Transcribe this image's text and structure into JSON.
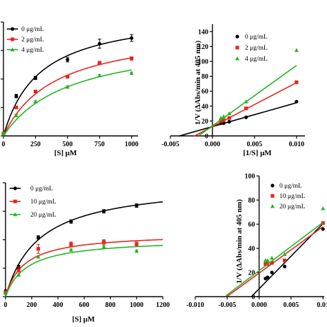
{
  "chart_data": [
    {
      "id": "A",
      "type": "line",
      "title": "",
      "xlabel": "[S] μM",
      "ylabel": "",
      "xlim": [
        0,
        1050
      ],
      "ylim": [
        0,
        10
      ],
      "xticks": [
        0,
        250,
        500,
        750,
        1000
      ],
      "xtick_labels": [
        "0",
        "250",
        "500",
        "750",
        "1000"
      ],
      "legend": {
        "position": "top-left",
        "entries": [
          "0 μg/mL",
          "2 μg/mL",
          "4 μg/mL"
        ]
      },
      "series": [
        {
          "name": "0 μg/mL",
          "color": "#000000",
          "marker": "circle",
          "x": [
            0,
            100,
            250,
            500,
            750,
            1000
          ],
          "y": [
            0.2,
            3.5,
            5.1,
            6.7,
            8.1,
            8.6
          ],
          "error": [
            0,
            0.15,
            0.15,
            0.2,
            0.4,
            0.3
          ],
          "fit": {
            "vmax": 11.0,
            "km": 280
          }
        },
        {
          "name": "2 μg/mL",
          "color": "#e8221c",
          "marker": "square",
          "x": [
            0,
            100,
            250,
            500,
            750,
            1000
          ],
          "y": [
            0.2,
            2.5,
            3.9,
            5.2,
            6.4,
            6.8
          ],
          "error": [
            0,
            0.1,
            0.1,
            0.1,
            0.15,
            0.15
          ],
          "fit": {
            "vmax": 9.6,
            "km": 400
          }
        },
        {
          "name": "4 μg/mL",
          "color": "#22b522",
          "marker": "triangle",
          "x": [
            0,
            100,
            250,
            500,
            750,
            1000
          ],
          "y": [
            0.2,
            1.8,
            3.0,
            4.3,
            5.3,
            5.5
          ],
          "error": [
            0,
            0.1,
            0.1,
            0.1,
            0.1,
            0.1
          ],
          "fit": {
            "vmax": 8.8,
            "km": 520
          }
        }
      ]
    },
    {
      "id": "B",
      "type": "scatter",
      "title": "",
      "xlabel": "[1/S] μM",
      "ylabel": "1/V (ΔAbs/min at 405 nm)",
      "xlim": [
        -0.005,
        0.011
      ],
      "ylim": [
        0,
        150
      ],
      "xticks": [
        -0.005,
        0,
        0.005,
        0.01
      ],
      "xtick_labels": [
        "-0.005",
        "0.000",
        "0.005",
        "0.010"
      ],
      "yticks": [
        0,
        20,
        40,
        60,
        80,
        100,
        120,
        140
      ],
      "ytick_labels": [
        "0",
        "20",
        "40",
        "60",
        "80",
        "100",
        "120",
        "140"
      ],
      "legend": {
        "position": "top-right",
        "entries": [
          "0 μg/mL",
          "2 μg/mL",
          "4 μg/mL"
        ]
      },
      "series": [
        {
          "name": "0 μg/mL",
          "color": "#000000",
          "marker": "circle",
          "x": [
            0.001,
            0.00133,
            0.002,
            0.004,
            0.01
          ],
          "y": [
            17,
            17,
            19,
            25,
            46
          ],
          "fit": {
            "slope": 3200,
            "intercept": 12.5,
            "x_from": -0.004,
            "x_to": 0.01
          }
        },
        {
          "name": "2 μg/mL",
          "color": "#e8221c",
          "marker": "square",
          "x": [
            0.001,
            0.00133,
            0.002,
            0.004,
            0.01
          ],
          "y": [
            20,
            21,
            24,
            37,
            72
          ],
          "fit": {
            "slope": 5900,
            "intercept": 12.5,
            "x_from": -0.0022,
            "x_to": 0.01
          }
        },
        {
          "name": "4 μg/mL",
          "color": "#22b522",
          "marker": "triangle",
          "x": [
            0.001,
            0.00133,
            0.002,
            0.004,
            0.01
          ],
          "y": [
            24,
            26,
            30,
            46,
            115
          ],
          "fit": {
            "slope": 8100,
            "intercept": 13.5,
            "x_from": -0.0016,
            "x_to": 0.01
          }
        }
      ]
    },
    {
      "id": "C",
      "type": "line",
      "title": "",
      "xlabel": "[S] μM",
      "ylabel": "",
      "xlim": [
        0,
        1200
      ],
      "ylim": [
        0,
        10
      ],
      "xticks": [
        0,
        200,
        400,
        600,
        800,
        1000,
        1200
      ],
      "xtick_labels": [
        "0",
        "200",
        "400",
        "600",
        "800",
        "1000",
        "1200"
      ],
      "legend": {
        "position": "top-left",
        "entries": [
          "0 μg/mL",
          "10 μg/mL",
          "20 μg/mL"
        ]
      },
      "series": [
        {
          "name": "0 μg/mL",
          "color": "#000000",
          "marker": "circle",
          "x": [
            0,
            100,
            250,
            500,
            750,
            1000
          ],
          "y": [
            0.5,
            2.6,
            5.2,
            6.6,
            7.5,
            8.0
          ],
          "error": [
            0,
            0.15,
            0.15,
            0.15,
            0.15,
            0.15
          ],
          "fit": {
            "vmax": 10.1,
            "km": 255
          }
        },
        {
          "name": "10 μg/mL",
          "color": "#e8221c",
          "marker": "square",
          "x": [
            0,
            100,
            250,
            500,
            750,
            1000
          ],
          "y": [
            0.4,
            2.3,
            4.2,
            4.6,
            4.8,
            4.6
          ],
          "error": [
            0,
            0.3,
            0.4,
            0.2,
            0.2,
            0.2
          ],
          "fit": {
            "vmax": 5.6,
            "km": 140
          }
        },
        {
          "name": "20 μg/mL",
          "color": "#22b522",
          "marker": "triangle",
          "x": [
            0,
            100,
            250,
            500,
            750,
            1000
          ],
          "y": [
            0.3,
            1.9,
            3.5,
            4.1,
            4.4,
            4.0
          ],
          "error": [
            0,
            0.1,
            0.1,
            0.1,
            0.1,
            0.1
          ],
          "fit": {
            "vmax": 5.1,
            "km": 160
          }
        }
      ]
    },
    {
      "id": "D",
      "type": "scatter",
      "title": "",
      "xlabel": "",
      "ylabel": "1/V (ΔAbs/min at 405 nm)",
      "xlim": [
        -0.01,
        0.0102
      ],
      "ylim": [
        0,
        100
      ],
      "xticks": [
        -0.01,
        -0.005,
        0,
        0.005,
        0.01
      ],
      "xtick_labels": [
        "-0.010",
        "-0.005",
        "0.000",
        "0.005",
        "0.01"
      ],
      "yticks": [
        0,
        20,
        40,
        60,
        80,
        100
      ],
      "ytick_labels": [
        "0",
        "20",
        "40",
        "60",
        "80",
        "100"
      ],
      "legend": {
        "position": "top-right",
        "entries": [
          "0 μg/mL",
          "10 μg/mL",
          "20 μg/mL"
        ]
      },
      "series": [
        {
          "name": "0 μg/mL",
          "color": "#000000",
          "marker": "circle",
          "x": [
            0.001,
            0.00133,
            0.002,
            0.004,
            0.01
          ],
          "y": [
            15,
            16,
            20,
            25,
            56
          ],
          "fit": {
            "slope": 5400,
            "intercept": 6.5,
            "x_from": -0.0012,
            "x_to": 0.01
          }
        },
        {
          "name": "10 μg/mL",
          "color": "#e8221c",
          "marker": "square",
          "x": [
            0.001,
            0.00133,
            0.002,
            0.004,
            0.01
          ],
          "y": [
            27,
            27,
            28,
            30,
            61
          ],
          "fit": {
            "slope": 3850,
            "intercept": 19.5,
            "x_from": -0.005,
            "x_to": 0.01
          }
        },
        {
          "name": "20 μg/mL",
          "color": "#22b522",
          "marker": "triangle",
          "x": [
            0.001,
            0.00133,
            0.002,
            0.004,
            0.01
          ],
          "y": [
            30,
            30,
            32,
            35,
            73
          ],
          "fit": {
            "slope": 4000,
            "intercept": 21.5,
            "x_from": -0.0052,
            "x_to": 0.01
          }
        }
      ]
    }
  ]
}
